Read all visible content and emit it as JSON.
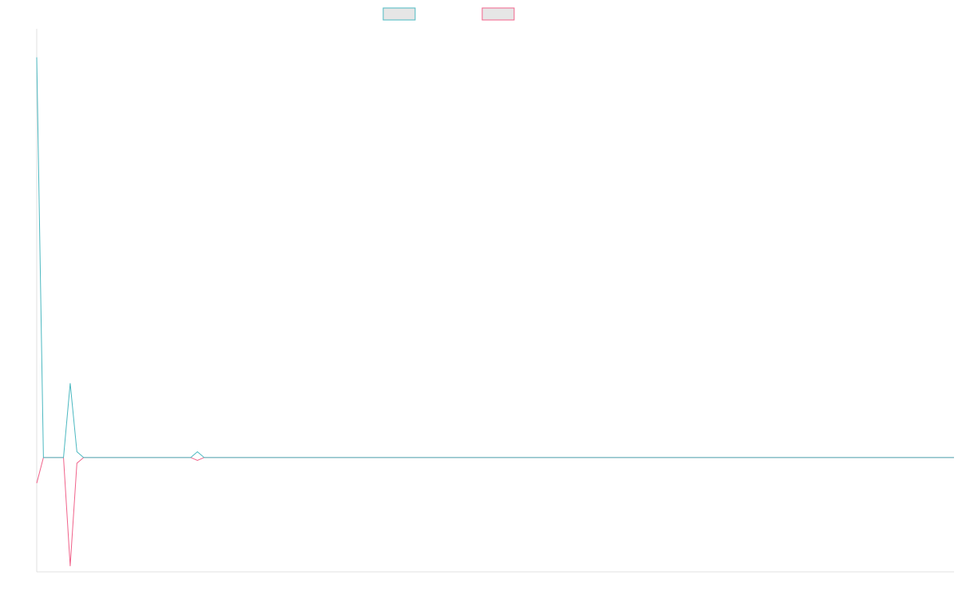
{
  "chart_data": {
    "type": "line",
    "title": "",
    "xlabel": "",
    "ylabel": "",
    "x": [
      0,
      1,
      2,
      3,
      4,
      5,
      6,
      7,
      8,
      9,
      10,
      11,
      12,
      13,
      14,
      15,
      16,
      17,
      18,
      19,
      20,
      21,
      22,
      23,
      24,
      25,
      26,
      27,
      28,
      29,
      30,
      31,
      32,
      33,
      34,
      35,
      36,
      37,
      38,
      39,
      40,
      41,
      42,
      43,
      44,
      45,
      46,
      47,
      48,
      49,
      50,
      51,
      52,
      53,
      54,
      55,
      56,
      57,
      58,
      59,
      60,
      61,
      62,
      63,
      64,
      65,
      66,
      67,
      68,
      69,
      70,
      71,
      72,
      73,
      74,
      75,
      76,
      77,
      78,
      79,
      80,
      81,
      82,
      83,
      84,
      85,
      86,
      87,
      88,
      89,
      90,
      91,
      92,
      93,
      94,
      95,
      96,
      97,
      98,
      99,
      100,
      101,
      102,
      103,
      104,
      105,
      106,
      107,
      108,
      109,
      110,
      111,
      112,
      113,
      114,
      115,
      116,
      117,
      118,
      119,
      120,
      121,
      122,
      123,
      124,
      125,
      126,
      127,
      128,
      129,
      130,
      131,
      132,
      133,
      134,
      135,
      136,
      137
    ],
    "ylim": [
      -20,
      75
    ],
    "grid": false,
    "legend": {
      "position": "top-center",
      "entries": 2
    },
    "series": [
      {
        "color": "#4bb8c0",
        "values": [
          70,
          0,
          0,
          0,
          0,
          13,
          1,
          0,
          0,
          0,
          0,
          0,
          0,
          0,
          0,
          0,
          0,
          0,
          0,
          0,
          0,
          0,
          0,
          0,
          1,
          0,
          0,
          0,
          0,
          0,
          0,
          0,
          0,
          0,
          0,
          0,
          0,
          0,
          0,
          0,
          0,
          0,
          0,
          0,
          0,
          0,
          0,
          0,
          0,
          0,
          0,
          0,
          0,
          0,
          0,
          0,
          0,
          0,
          0,
          0,
          0,
          0,
          0,
          0,
          0,
          0,
          0,
          0,
          0,
          0,
          0,
          0,
          0,
          0,
          0,
          0,
          0,
          0,
          0,
          0,
          0,
          0,
          0,
          0,
          0,
          0,
          0,
          0,
          0,
          0,
          0,
          0,
          0,
          0,
          0,
          0,
          0,
          0,
          0,
          0,
          0,
          0,
          0,
          0,
          0,
          0,
          0,
          0,
          0,
          0,
          0,
          0,
          0,
          0,
          0,
          0,
          0,
          0,
          0,
          0,
          0,
          0,
          0,
          0,
          0,
          0,
          0,
          0,
          0,
          0,
          0,
          0,
          0,
          0,
          0,
          0,
          0,
          0
        ]
      },
      {
        "color": "#f0628a",
        "values": [
          -4.5,
          0,
          0,
          0,
          0,
          -19,
          -1,
          0,
          0,
          0,
          0,
          0,
          0,
          0,
          0,
          0,
          0,
          0,
          0,
          0,
          0,
          0,
          0,
          0,
          -0.5,
          0,
          0,
          0,
          0,
          0,
          0,
          0,
          0,
          0,
          0,
          0,
          0,
          0,
          0,
          0,
          0,
          0,
          0,
          0,
          0,
          0,
          0,
          0,
          0,
          0,
          0,
          0,
          0,
          0,
          0,
          0,
          0,
          0,
          0,
          0,
          0,
          0,
          0,
          0,
          0,
          0,
          0,
          0,
          0,
          0,
          0,
          0,
          0,
          0,
          0,
          0,
          0,
          0,
          0,
          0,
          0,
          0,
          0,
          0,
          0,
          0,
          0,
          0,
          0,
          0,
          0,
          0,
          0,
          0,
          0,
          0,
          0,
          0,
          0,
          0,
          0,
          0,
          0,
          0,
          0,
          0,
          0,
          0,
          0,
          0,
          0,
          0,
          0,
          0,
          0,
          0,
          0,
          0,
          0,
          0,
          0,
          0,
          0,
          0,
          0,
          0,
          0,
          0,
          0,
          0,
          0,
          0,
          0,
          0,
          0,
          0,
          0,
          0
        ]
      }
    ]
  }
}
